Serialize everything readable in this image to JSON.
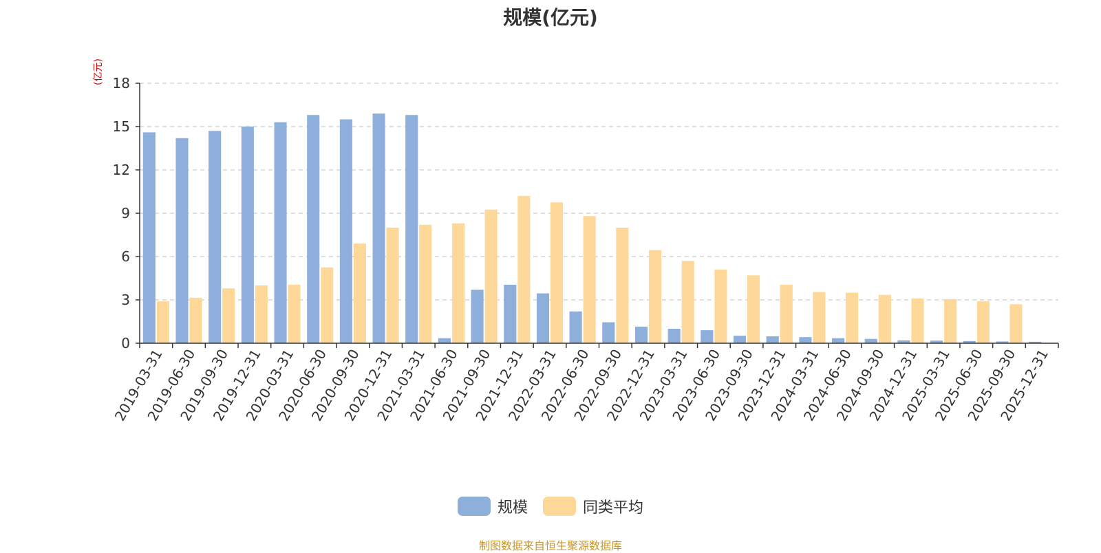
{
  "chart_data": {
    "type": "bar",
    "title": "规模(亿元)",
    "ylabel": "(亿元)",
    "xlabel": "",
    "ylim": [
      0,
      18
    ],
    "yticks": [
      0,
      3,
      6,
      9,
      12,
      15,
      18
    ],
    "grid": true,
    "legend_position": "bottom-center",
    "categories": [
      "2019-03-31",
      "2019-06-30",
      "2019-09-30",
      "2019-12-31",
      "2020-03-31",
      "2020-06-30",
      "2020-09-30",
      "2020-12-31",
      "2021-03-31",
      "2021-06-30",
      "2021-09-30",
      "2021-12-31",
      "2022-03-31",
      "2022-06-30",
      "2022-09-30",
      "2022-12-31",
      "2023-03-31",
      "2023-06-30",
      "2023-09-30",
      "2023-12-31",
      "2024-03-31",
      "2024-06-30",
      "2024-09-30",
      "2024-12-31",
      "2025-03-31",
      "2025-06-30",
      "2025-09-30",
      "2025-12-31"
    ],
    "series": [
      {
        "name": "规模",
        "color": "#8eaedb",
        "values": [
          14.6,
          14.2,
          14.7,
          15.0,
          15.3,
          15.8,
          15.5,
          15.9,
          15.8,
          0.35,
          3.7,
          4.05,
          3.45,
          2.2,
          1.45,
          1.15,
          1.0,
          0.9,
          0.52,
          0.48,
          0.42,
          0.35,
          0.3,
          0.2,
          0.18,
          0.15,
          0.12,
          0.1
        ]
      },
      {
        "name": "同类平均",
        "color": "#fed899",
        "values": [
          2.9,
          3.15,
          3.8,
          4.0,
          4.05,
          5.25,
          6.9,
          8.0,
          8.2,
          8.3,
          9.25,
          10.2,
          9.75,
          8.8,
          8.0,
          6.45,
          5.7,
          5.1,
          4.7,
          4.05,
          3.55,
          3.5,
          3.35,
          3.1,
          3.05,
          2.9,
          2.7,
          null
        ]
      }
    ],
    "source_note": "制图数据来自恒生聚源数据库"
  }
}
